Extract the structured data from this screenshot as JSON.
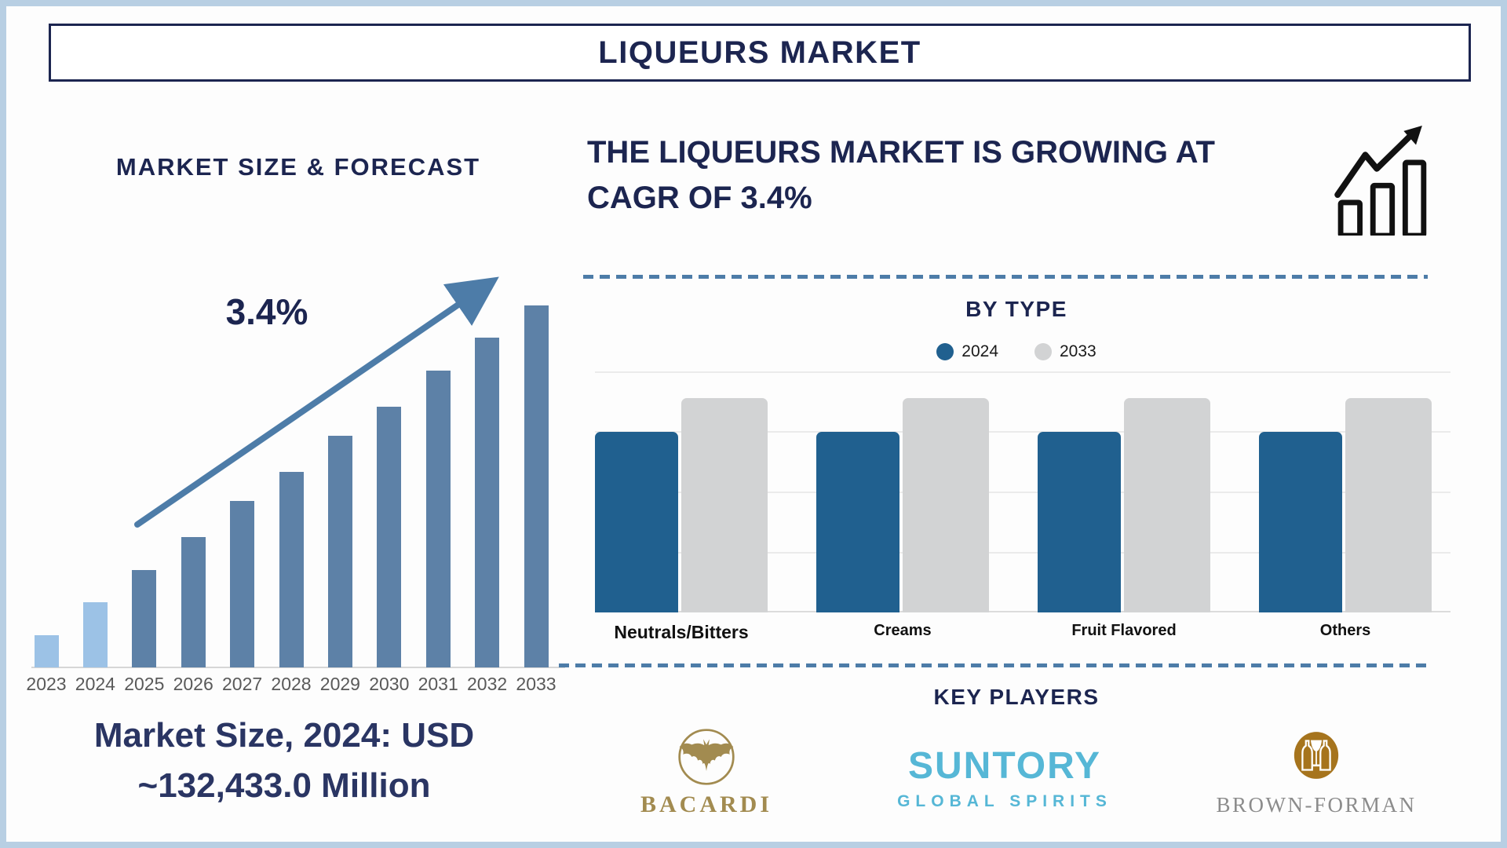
{
  "title": "LIQUEURS MARKET",
  "left_chart": {
    "title": "MARKET SIZE & FORECAST",
    "cagr_label": "3.4%",
    "callout": "Market Size, 2024: USD\n~132,433.0 Million"
  },
  "right": {
    "heading": "THE LIQUEURS MARKET IS GROWING AT\nCAGR OF 3.4%",
    "by_type_title": "BY TYPE",
    "key_players_title": "KEY PLAYERS",
    "players": {
      "bacardi": {
        "name": "BACARDI"
      },
      "suntory": {
        "name": "SUNTORY",
        "subtitle": "GLOBAL SPIRITS"
      },
      "brown_forman": {
        "name": "BROWN-FORMAN"
      }
    }
  },
  "colors": {
    "navy": "#1c2550",
    "steel_blue": "#5d81a7",
    "light_blue": "#9cc2e6",
    "arrow_blue": "#4d7ca8",
    "type_blue": "#20608f",
    "type_gray": "#d2d3d4",
    "frame_blue": "#b8cfe3",
    "year_label_gray": "#595959",
    "bacardi_gold": "#a28b50",
    "suntory_teal": "#56b7d6",
    "brown_forman_bronze": "#a6741d",
    "brown_forman_text": "#8c8c8c"
  },
  "chart_data": [
    {
      "type": "bar",
      "title": "MARKET SIZE & FORECAST",
      "categories": [
        "2023",
        "2024",
        "2025",
        "2026",
        "2027",
        "2028",
        "2029",
        "2030",
        "2031",
        "2032",
        "2033"
      ],
      "values": [
        9,
        18,
        27,
        36,
        46,
        54,
        64,
        72,
        82,
        91,
        100
      ],
      "units": "relative bar height, % of 2033 bar (no value axis shown)",
      "known_point": "2024 = USD ~132,433.0 Million",
      "annotation": "3.4% CAGR trend arrow",
      "grid": false,
      "highlight_years_light_blue": [
        "2023",
        "2024"
      ]
    },
    {
      "type": "bar",
      "title": "BY TYPE",
      "categories": [
        "Neutrals/Bitters",
        "Creams",
        "Fruit Flavored",
        "Others"
      ],
      "series": [
        {
          "name": "2024",
          "color": "#20608f",
          "values": [
            75,
            75,
            75,
            75
          ]
        },
        {
          "name": "2033",
          "color": "#d2d3d4",
          "values": [
            89,
            89,
            89,
            89
          ]
        }
      ],
      "units": "relative bar height, % of plot height (no value axis shown)",
      "ylim": [
        0,
        100
      ],
      "grid": true,
      "legend_position": "top"
    }
  ]
}
